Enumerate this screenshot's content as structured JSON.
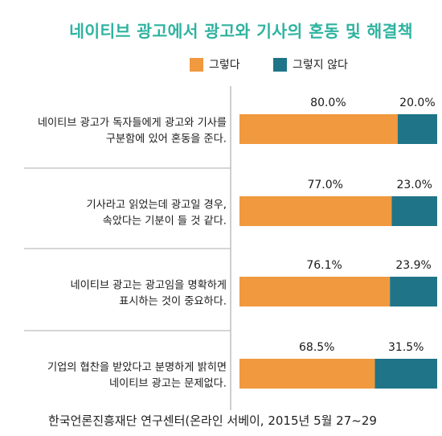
{
  "title": "네이티브 광고에서 광고와 기사의 혼동 및 해결책",
  "colors": {
    "title": "#2fb3a0",
    "agree": "#f0993f",
    "disagree": "#1f7488",
    "separator": "#bdbdbd"
  },
  "source": "한국언론진흥재단 연구센터(온라인 서베이, 2015년 5월 27~29",
  "chart_data": {
    "type": "bar",
    "orientation": "horizontal",
    "stacked": true,
    "unit": "%",
    "xlim": [
      0,
      100
    ],
    "legend_position": "top",
    "series": [
      {
        "name": "그렇다",
        "values": [
          80.0,
          77.0,
          76.1,
          68.5
        ],
        "labels": [
          "80.0%",
          "77.0%",
          "76.1%",
          "68.5%"
        ]
      },
      {
        "name": "그렇지 않다",
        "values": [
          20.0,
          23.0,
          23.9,
          31.5
        ],
        "labels": [
          "20.0%",
          "23.0%",
          "23.9%",
          "31.5%"
        ]
      }
    ],
    "categories": [
      [
        "네이티브 광고가 독자들에게 광고와 기사를",
        "구분함에 있어 혼동을 준다."
      ],
      [
        "기사라고 읽었는데 광고일 경우,",
        "속았다는 기분이 들 것 같다."
      ],
      [
        "네이티브 광고는 광고임을 명확하게",
        "표시하는 것이  중요하다."
      ],
      [
        "기업의 협찬을 받았다고 분명하게 밝히면",
        "네이티브 광고는 문제없다."
      ]
    ]
  }
}
